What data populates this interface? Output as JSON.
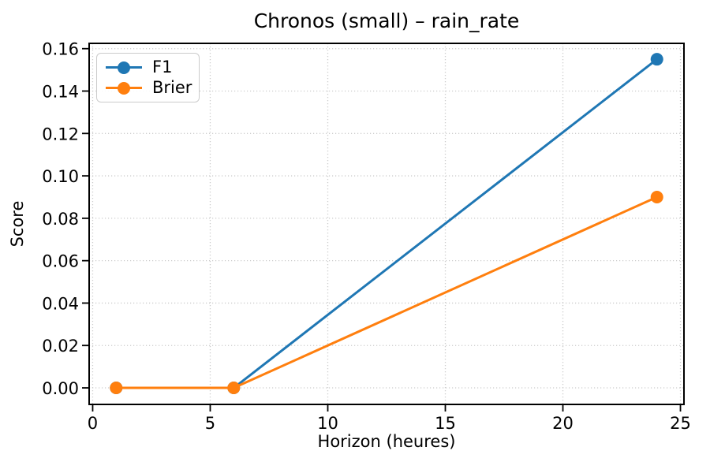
{
  "figure": {
    "background": "#ffffff",
    "text_color": "#000000",
    "axis_color": "#000000",
    "grid_color": "#cccccc"
  },
  "chart_data": {
    "type": "line",
    "title": "Chronos (small) – rain_rate",
    "xlabel": "Horizon (heures)",
    "ylabel": "Score",
    "x": [
      1,
      6,
      24
    ],
    "series": [
      {
        "name": "F1",
        "color": "#1f77b4",
        "marker": "o",
        "values": [
          0.0,
          0.0,
          0.155
        ]
      },
      {
        "name": "Brier",
        "color": "#ff7f0e",
        "marker": "o",
        "values": [
          0.0,
          0.0,
          0.09
        ]
      }
    ],
    "xlim": [
      -0.15,
      25.15
    ],
    "ylim": [
      -0.0078,
      0.1625
    ],
    "x_ticks": [
      0,
      5,
      10,
      15,
      20,
      25
    ],
    "x_tick_labels": [
      "0",
      "5",
      "10",
      "15",
      "20",
      "25"
    ],
    "y_ticks": [
      0.0,
      0.02,
      0.04,
      0.06,
      0.08,
      0.1,
      0.12,
      0.14,
      0.16
    ],
    "y_tick_labels": [
      "0.00",
      "0.02",
      "0.04",
      "0.06",
      "0.08",
      "0.10",
      "0.12",
      "0.14",
      "0.16"
    ],
    "grid": true,
    "grid_style": "dotted",
    "legend_position": "upper left"
  }
}
